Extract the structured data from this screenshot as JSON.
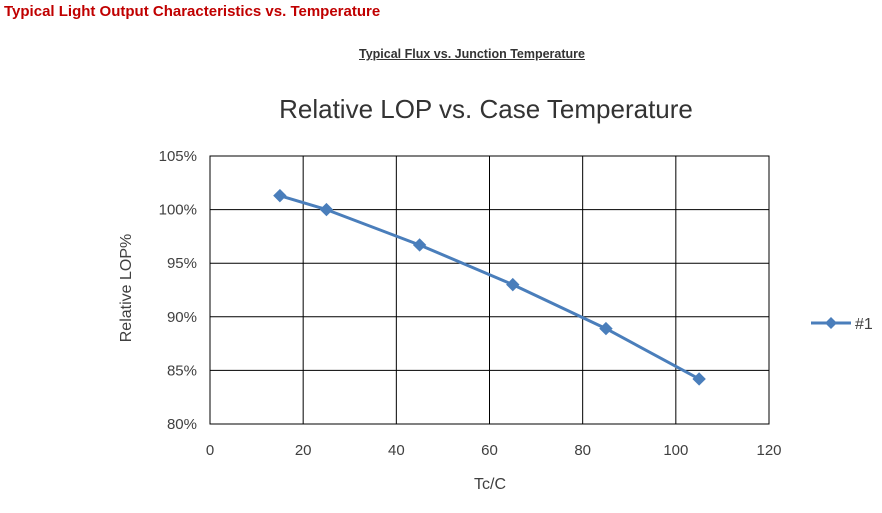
{
  "page": {
    "heading": "Typical Light Output Characteristics vs. Temperature",
    "subheading": "Typical Flux vs. Junction Temperature"
  },
  "colors": {
    "heading": "#c00000",
    "series": "#4a7ebb",
    "grid": "#000000"
  },
  "chart_data": {
    "type": "line",
    "title": "Relative LOP vs. Case Temperature",
    "xlabel": "Tc/C",
    "ylabel": "Relative LOP%",
    "xlim": [
      0,
      120
    ],
    "ylim": [
      80,
      105
    ],
    "x_ticks": [
      0,
      20,
      40,
      60,
      80,
      100,
      120
    ],
    "x_tick_labels": [
      "0",
      "20",
      "40",
      "60",
      "80",
      "100",
      "120"
    ],
    "y_ticks": [
      80,
      85,
      90,
      95,
      100,
      105
    ],
    "y_tick_labels": [
      "80%",
      "85%",
      "90%",
      "95%",
      "100%",
      "105%"
    ],
    "grid": true,
    "legend_position": "right",
    "marker": "diamond",
    "series": [
      {
        "name": "#1",
        "x": [
          15,
          25,
          45,
          65,
          85,
          105
        ],
        "y": [
          101.3,
          100.0,
          96.7,
          93.0,
          88.9,
          84.2
        ]
      }
    ]
  }
}
